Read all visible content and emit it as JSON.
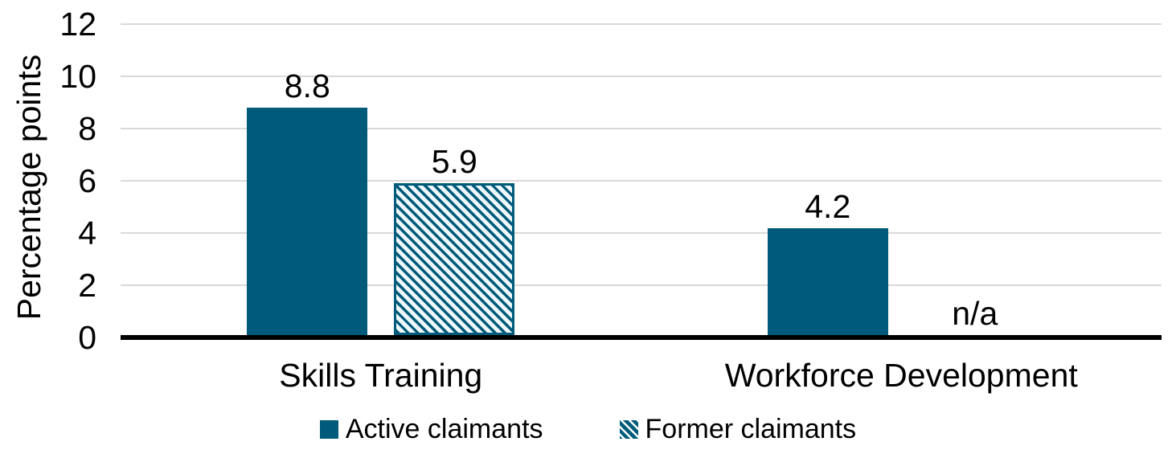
{
  "chart_data": {
    "type": "bar",
    "title": "",
    "xlabel": "",
    "ylabel": "Percentage points",
    "ylim": [
      0,
      12
    ],
    "yticks": [
      0,
      2,
      4,
      6,
      8,
      10,
      12
    ],
    "grid": true,
    "legend_position": "bottom",
    "categories": [
      "Skills Training",
      "Workforce Development"
    ],
    "series": [
      {
        "name": "Active claimants",
        "style": "solid",
        "values": [
          8.8,
          4.2
        ],
        "labels": [
          "8.8",
          "4.2"
        ]
      },
      {
        "name": "Former claimants",
        "style": "hatched",
        "values": [
          5.9,
          null
        ],
        "labels": [
          "5.9",
          "n/a"
        ]
      }
    ]
  },
  "colors": {
    "bar": "#005B7B",
    "hatch_background": "#EEF7F9",
    "gridline": "#D9D9D9",
    "axis": "#000000",
    "text": "#000000",
    "background": "#FFFFFF"
  }
}
